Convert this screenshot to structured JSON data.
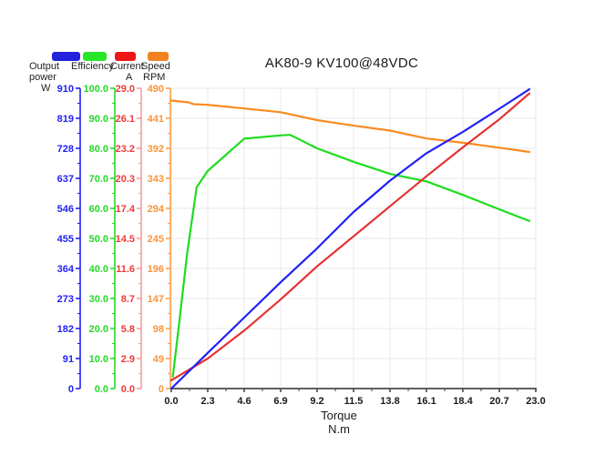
{
  "title": "AK80-9 KV100@48VDC",
  "legend": {
    "items": [
      {
        "name": "output-power",
        "label_lines": [
          "Output",
          "power"
        ],
        "unit": "W",
        "swatch_color": "#2222dd"
      },
      {
        "name": "efficiency",
        "label_lines": [
          "Efficiency"
        ],
        "unit": "",
        "swatch_color": "#2ae62a"
      },
      {
        "name": "current",
        "label_lines": [
          "Current"
        ],
        "unit": "A",
        "swatch_color": "#ee1515"
      },
      {
        "name": "speed",
        "label_lines": [
          "Speed"
        ],
        "unit": "RPM",
        "swatch_color": "#f08320"
      }
    ]
  },
  "chart_data": {
    "type": "line",
    "title": "AK80-9 KV100@48VDC",
    "xlabel": "Torque",
    "x_unit": "N.m",
    "x_range": [
      0,
      23
    ],
    "x_ticks": [
      "0.0",
      "2.3",
      "4.6",
      "6.9",
      "9.2",
      "11.5",
      "13.8",
      "16.1",
      "18.4",
      "20.7",
      "23.0"
    ],
    "grid": true,
    "legend_position": "top-left",
    "axes": [
      {
        "name": "output-power",
        "unit": "W",
        "min": 0,
        "max": 910,
        "text_color": "#2121f3",
        "line_color": "#2121f3",
        "tick_labels": [
          "910",
          "819",
          "728",
          "637",
          "546",
          "455",
          "364",
          "273",
          "182",
          "91",
          "0"
        ]
      },
      {
        "name": "efficiency",
        "unit": "",
        "min": 0,
        "max": 100,
        "text_color": "#28d828",
        "line_color": "#28d828",
        "tick_labels": [
          "100.0",
          "90.0",
          "80.0",
          "70.0",
          "60.0",
          "50.0",
          "40.0",
          "30.0",
          "20.0",
          "10.0",
          "0.0"
        ]
      },
      {
        "name": "current",
        "unit": "A",
        "min": 0,
        "max": 29,
        "text_color": "#ee3a3a",
        "line_color": "#f59e9e",
        "tick_labels": [
          "29.0",
          "26.1",
          "23.2",
          "20.3",
          "17.4",
          "14.5",
          "11.6",
          "8.7",
          "5.8",
          "2.9",
          "0.0"
        ]
      },
      {
        "name": "speed",
        "unit": "RPM",
        "min": 0,
        "max": 490,
        "text_color": "#f5953e",
        "line_color": "#fba04c",
        "tick_labels": [
          "490",
          "441",
          "392",
          "343",
          "294",
          "245",
          "196",
          "147",
          "98",
          "49",
          "0"
        ]
      }
    ],
    "series": [
      {
        "name": "Output power",
        "axis": "output-power",
        "color": "#2222f5",
        "points": [
          [
            0,
            0
          ],
          [
            2.3,
            108
          ],
          [
            4.6,
            215
          ],
          [
            6.9,
            322
          ],
          [
            9.2,
            425
          ],
          [
            11.5,
            535
          ],
          [
            13.8,
            630
          ],
          [
            16.1,
            713
          ],
          [
            18.4,
            778
          ],
          [
            20.7,
            848
          ],
          [
            22.6,
            907
          ]
        ]
      },
      {
        "name": "Efficiency",
        "axis": "efficiency",
        "color": "#1edc1e",
        "points": [
          [
            0.1,
            4
          ],
          [
            0.5,
            22
          ],
          [
            1.0,
            45
          ],
          [
            1.6,
            67
          ],
          [
            2.3,
            72.5
          ],
          [
            4.6,
            83.2
          ],
          [
            6.9,
            84.3
          ],
          [
            7.5,
            84.5
          ],
          [
            9.2,
            80
          ],
          [
            11.5,
            75.5
          ],
          [
            13.8,
            71.5
          ],
          [
            16.1,
            69
          ],
          [
            18.4,
            64.5
          ],
          [
            20.7,
            59.7
          ],
          [
            22.6,
            55.8
          ]
        ]
      },
      {
        "name": "Current",
        "axis": "current",
        "color": "#e63232",
        "points": [
          [
            0,
            0.8
          ],
          [
            2.3,
            2.9
          ],
          [
            4.6,
            5.6
          ],
          [
            6.9,
            8.6
          ],
          [
            9.2,
            11.8
          ],
          [
            11.5,
            14.7
          ],
          [
            13.8,
            17.6
          ],
          [
            16.1,
            20.5
          ],
          [
            18.4,
            23.3
          ],
          [
            20.7,
            26.0
          ],
          [
            22.6,
            28.5
          ]
        ]
      },
      {
        "name": "Speed",
        "axis": "speed",
        "color": "#fb8b20",
        "points": [
          [
            0,
            470
          ],
          [
            1.1,
            467
          ],
          [
            1.4,
            464
          ],
          [
            2.3,
            463
          ],
          [
            4.6,
            457
          ],
          [
            6.9,
            451
          ],
          [
            9.2,
            438
          ],
          [
            11.5,
            429
          ],
          [
            13.8,
            421
          ],
          [
            16.1,
            408
          ],
          [
            18.4,
            401
          ],
          [
            20.7,
            393
          ],
          [
            22.6,
            386
          ]
        ]
      }
    ]
  }
}
